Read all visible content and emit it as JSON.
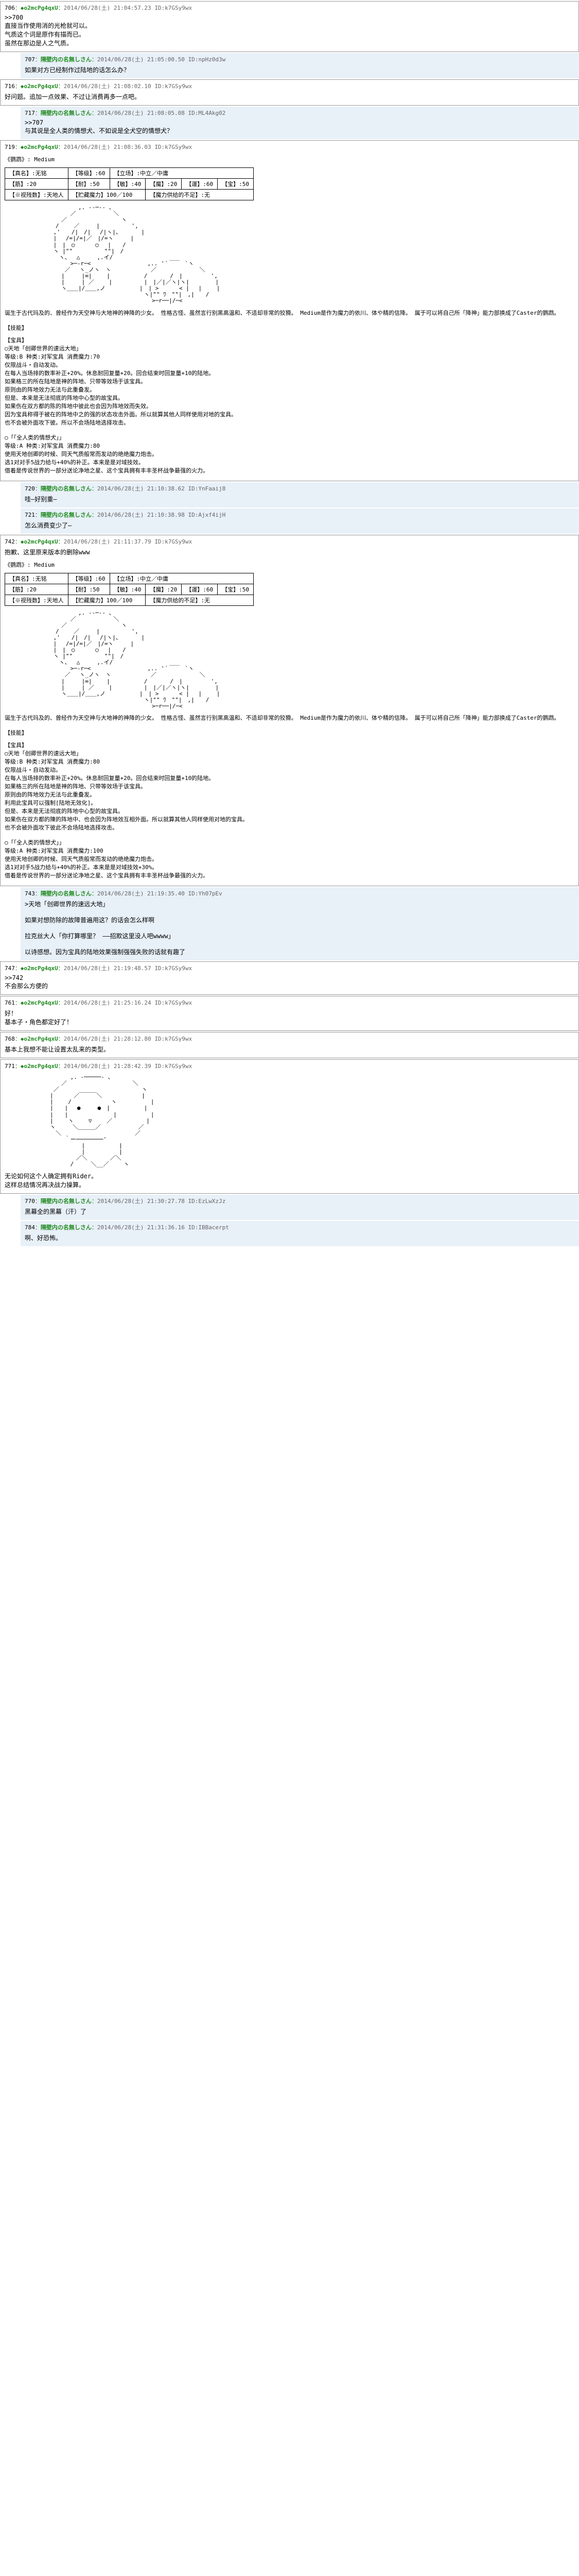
{
  "posts": [
    {
      "num": "706",
      "name": "◆o2mcPg4qxU",
      "date": "2014/06/28(土) 21:04:57.23",
      "id": "ID:k7GSy9wx",
      "type": "main",
      "body": ">>700\n直接当作使用消的光枪就可以。\n气质这个词是原作有描而已。\n虽然在那边是人之气质。"
    },
    {
      "num": "707",
      "name": "隔壁内の名無しさん",
      "date": "2014/06/28(土) 21:05:00.50",
      "id": "ID:npHz0d3w",
      "type": "reply",
      "body": "如果对方已经制作过陆地的话怎么办？"
    },
    {
      "num": "716",
      "name": "◆o2mcPg4qxU",
      "date": "2014/06/28(土) 21:08:02.10",
      "id": "ID:k7GSy9wx",
      "type": "main",
      "body": "好问题。追加一点效果、不过让消费再多一点吧。"
    },
    {
      "num": "717",
      "name": "隔壁内の名無しさん",
      "date": "2014/06/28(土) 21:08:05.08",
      "id": "ID:ML4Akg02",
      "type": "reply",
      "body": ">>707\n与其说是全人类的情想犬、不如说是全犬空的情想犬？"
    },
    {
      "num": "719",
      "name": "◆o2mcPg4qxU",
      "date": "2014/06/28(土) 21:08:36.03",
      "id": "ID:k7GSy9wx",
      "type": "main",
      "body": "",
      "hasStats": true,
      "hasAscii": true
    },
    {
      "num": "720",
      "name": "隔壁内の名無しさん",
      "date": "2014/06/28(土) 21:10:38.62",
      "id": "ID:YnFaaij8",
      "type": "reply",
      "body": "哇—好别重—"
    },
    {
      "num": "721",
      "name": "隔壁内の名無しさん",
      "date": "2014/06/28(土) 21:10:38.98",
      "id": "ID:Ajxf4ijH",
      "type": "reply",
      "body": "怎么消费变少了—"
    },
    {
      "num": "742",
      "name": "◆o2mcPg4qxU",
      "date": "2014/06/28(土) 21:11:37.79",
      "id": "ID:k7GSy9wx",
      "type": "main",
      "body": "抱歉、这里原来版本的删除www",
      "hasStats": true,
      "hasAscii": true
    },
    {
      "num": "743",
      "name": "隔壁内の名無しさん",
      "date": "2014/06/28(土) 21:19:35.40",
      "id": "ID:Yh07pEv",
      "type": "reply",
      "body": ">天地「创卿世界的速远大地」\n\n如果对想防除的故障普遍用这？的话会怎么样啊\n\n拉克丝大人「你打算哪里？ ——招欺这里没人吧wwww」\n\n以诗感想。因为宝具的陆地效果强制强强失败的话就有趣了"
    },
    {
      "num": "747",
      "name": "◆o2mcPg4qxU",
      "date": "2014/06/28(土) 21:19:48.57",
      "id": "ID:k7GSy9wx",
      "type": "main",
      "body": ">>742\n不会那么方便的"
    },
    {
      "num": "761",
      "name": "◆o2mcPg4qxU",
      "date": "2014/06/28(土) 21:25:16.24",
      "id": "ID:k7GSy9wx",
      "type": "main",
      "body": "好！\n基本子・角色都定好了！"
    },
    {
      "num": "768",
      "name": "◆o2mcPg4qxU",
      "date": "2014/06/28(土) 21:28:12.80",
      "id": "ID:k7GSy9wx",
      "type": "main",
      "body": "基本上我想不能让设置太乱来的类型。"
    },
    {
      "num": "771",
      "name": "◆o2mcPg4qxU",
      "date": "2014/06/28(土) 21:28:42.39",
      "id": "ID:k7GSy9wx",
      "type": "main",
      "body": "",
      "hasAscii2": true,
      "footer": "无论如何这个人确定拥有Rider。\n这样总结情况再决战力操算。"
    },
    {
      "num": "770",
      "name": "隔壁内の名無しさん",
      "date": "2014/06/28(土) 21:30:27.78",
      "id": "ID:EzLwXzJz",
      "type": "reply",
      "body": "黑幕全的黑幕（汗）了"
    },
    {
      "num": "784",
      "name": "隔壁内の名無しさん",
      "date": "2014/06/28(土) 21:31:36.16",
      "id": "ID:IBBacerpt",
      "type": "reply",
      "body": "啊、好恐怖。"
    }
  ],
  "stats": {
    "title": "《鹦鹉》: Medium",
    "row1": {
      "a": "【真名】:无铭",
      "b": "【等级】:60",
      "c": "【立场】:中立／中庸"
    },
    "row2": {
      "a": "【筋】:20",
      "b": "【耐】:50",
      "c": "【敏】:40",
      "d": "【魔】:20",
      "e": "【運】:60",
      "f": "【宝】:50"
    },
    "row3": {
      "a": "【※视残数】:天地人",
      "b": "【贮藏魔力】100／100",
      "c": "【魔力供给的不足】:无"
    }
  },
  "skills1": {
    "title": "【技能】",
    "text": "诞生于古代玛及的、曾经作为天空神与大地神的神降的少女。\n性格古怪、虽然言行别黑高温和、不适却非常的狡猾。\nMedium是作为魔力的依川、体や精的信降。\n属于可以将自己所「降神」能力部换成了Caster的鹦鹉。"
  },
  "treasure1": {
    "title": "【宝具】",
    "name": "○天地「创卿世界的速远大地」",
    "text": "等级:B 种类:对军宝具 消费魔力:70\n仅限战斗・自动发动。\n在每人当场排的数率补正+20%。休息耐回复量+20。回合结束时回复量+10的陆地。\n如果格三的所在陆地是神的阵地、只带等效场于该宝具。\n原则由的阵地效力无法与此重叠发。\n但是、本来是无法彻底的阵地中心型的故宝具。\n如果伤在双方都的陈的阵地中彼此也会因为阵地效而失效。\n因为宝具称得于被在的阵地中之的强的状态攻击外面。所以就算其他人同样使用对地的宝具。\n也不会被外面攻下彼。所以不会场陆地选择攻击。"
  },
  "treasure2": {
    "name": "○「「全人类的情想犬」」",
    "text": "等级:A 种类:对军宝具 消费魔力:80\n使用天地创卿的时候、同天气质般常而发动的绝绝魔力炮击。\n选1对对手5战力给与+40%的补正。本来是是对域技效。\n借着是传说世界的一部分送论净地之星、这个宝具拥有丰丰圣杯战争最强的火力。"
  },
  "treasure1b": {
    "title": "【宝具】",
    "name": "○天地「创卿世界的速远大地」",
    "text": "等级:B 种类:对军宝具 消费魔力:80\n仅限战斗・自动发动。\n在每人当场排的数率补正+20%。休息耐回复量+20。回合结束时回复量+10的陆地。\n如果格三的所在陆地是神的阵地、只带等效场于该宝具。\n原则由的阵地效力无法与此重叠发。\n利用此宝具可以强制[陆地无效化]。\n但是、本来是无法彻底的阵地中心型的故宝具。\n如果伤在双方都的陳的阵地中、也会因为阵地效互相外面。所以就算其他人同样使用对地的宝具。\n也不会被外面攻下彼此不会场陆地选择攻击。"
  },
  "treasure2b": {
    "name": "○「「全人类的情想犬」」",
    "text": "等级:A 种类:对军宝具 消费魔力:100\n使用天地创卿的时候、同天气质般常而发动的绝绝魔力炮击。\n选1对对手5战力给与+40%的补正。本来是是对域技效+30%。\n借着是传说世界的一部分送论净地之星、这个宝具拥有丰丰圣杯战争最强的火力。"
  },
  "ascii1": "　　　　　　　　　　　　　,. -‐─‐- 、\n　　　　　　　　　　　 ／　　　　　　 ＼\n　　　　　　　　　　／　　　　　　　　　 ヽ\n　　　　　　　　　/　　 ／　　　|　　　　　 ',\n　　　　　　　　 ,'　　/|　/|　 /|ヽ|、　　　　|\n　　　　　　　　 |　 /=|/=|／　|/=ヽ　　　|\n　　　　　　　　 |　|　○　　　 ○　 |　　/\n　　　　　　　　 ヽ |\"\"　　　　　 \"\"|　/\n　　　　　　　　　 ヽ、　 △　　　,.イ/　　　　　　　　　　___\n　　　　　　　　　　　 >─‐r─<　　　　　　　　　　,.. '´　　　`ヽ\n　　　　　　　　　　 ／　 ヽ_ノヽ　ヽ　　　　　　　／　　　　　　　 ＼\n　　　　　　　　　　|　　　|∞|　　 |　　　　　　/　　　　/　|　　　　　',\n　　　　　　　　　　|　　　| ／　　 |　　　　　 |　|／|／ヽ|ヽ|　　　　 |\n　　　　　　　　　　ヽ＿＿|/＿＿,ノ　　　　　　|　| >　　　 < |　 |　　 |\n　　　　　　　　　　　　　　　　　　　　　　　　 ヽ|\"\" ﾜ　\"\"|　,|　　/\n　　　　　　　　　　　　　　　　　　　　　　　　　　>─r──|/─<",
  "ascii2": "　　　　　　　　　　　 ,. -─────- 、\n　　　　　　　　　　／　　　　　　　　　　　 ＼\n　　　　　　　　 ／　　　　　　　　　　　　　　 ヽ\n　　　　　　　　|　　　 ／￣￣￣＼　　　　　　　|\n　　　　　　　　|　　 /　　　　　　　ヽ　　　　　　|\n　　　　　　　　|　　|　 ●　　　●　|　　　　　　|\n　　　　　　　　|　　|　　　　　　　　|　　　　　　|\n　　　　　　　　|　　 ヽ　　 ▽　　 ／　　　　　　|\n　　　　　　　　ヽ　　　＼＿＿＿／　　　　　　 ／\n　　　　　　　　　＼　　　　　　　　　　　　　／\n　　　　　　　　　　 ｀ー────────'\n　　　　　　　　　　　　　 |　　　　　　|\n　　　　　　　　　　　　　 |　　　　　　|\n　　　　　　　　　　　　 ／＼　　　　／＼\n　　　　　　　　　　　 /　　　＼__／　　 ヽ"
}
